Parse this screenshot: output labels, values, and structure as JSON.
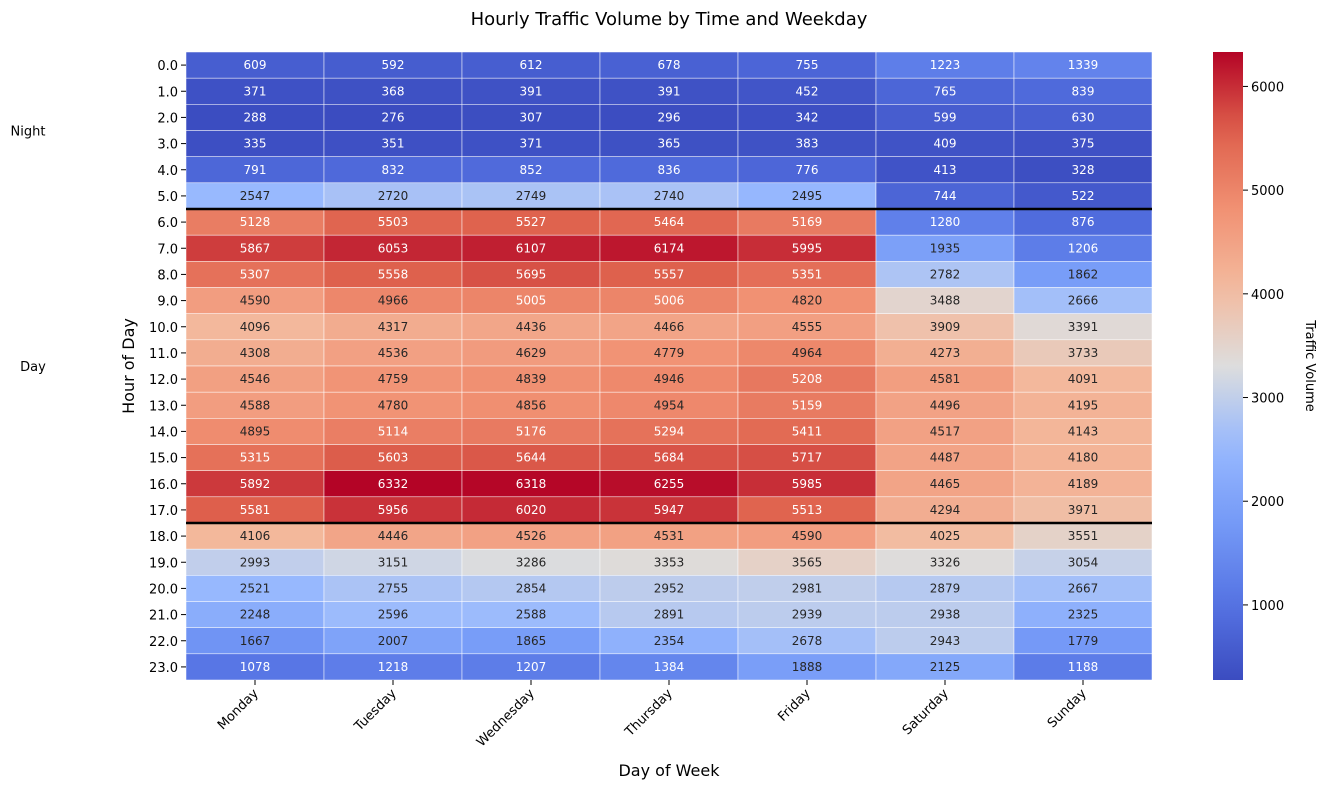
{
  "chart_data": {
    "type": "heatmap",
    "title": "Hourly Traffic Volume by Time and Weekday",
    "xlabel": "Day of Week",
    "ylabel": "Hour of Day",
    "colorbar_label": "Traffic Volume",
    "colormap": "coolwarm",
    "color_range": [
      276,
      6332
    ],
    "colorbar_ticks": [
      1000,
      2000,
      3000,
      4000,
      5000,
      6000
    ],
    "x_categories": [
      "Monday",
      "Tuesday",
      "Wednesday",
      "Thursday",
      "Friday",
      "Saturday",
      "Sunday"
    ],
    "y_categories": [
      "0.0",
      "1.0",
      "2.0",
      "3.0",
      "4.0",
      "5.0",
      "6.0",
      "7.0",
      "8.0",
      "9.0",
      "10.0",
      "11.0",
      "12.0",
      "13.0",
      "14.0",
      "15.0",
      "16.0",
      "17.0",
      "18.0",
      "19.0",
      "20.0",
      "21.0",
      "22.0",
      "23.0"
    ],
    "values": [
      [
        609,
        592,
        612,
        678,
        755,
        1223,
        1339
      ],
      [
        371,
        368,
        391,
        391,
        452,
        765,
        839
      ],
      [
        288,
        276,
        307,
        296,
        342,
        599,
        630
      ],
      [
        335,
        351,
        371,
        365,
        383,
        409,
        375
      ],
      [
        791,
        832,
        852,
        836,
        776,
        413,
        328
      ],
      [
        2547,
        2720,
        2749,
        2740,
        2495,
        744,
        522
      ],
      [
        5128,
        5503,
        5527,
        5464,
        5169,
        1280,
        876
      ],
      [
        5867,
        6053,
        6107,
        6174,
        5995,
        1935,
        1206
      ],
      [
        5307,
        5558,
        5695,
        5557,
        5351,
        2782,
        1862
      ],
      [
        4590,
        4966,
        5005,
        5006,
        4820,
        3488,
        2666
      ],
      [
        4096,
        4317,
        4436,
        4466,
        4555,
        3909,
        3391
      ],
      [
        4308,
        4536,
        4629,
        4779,
        4964,
        4273,
        3733
      ],
      [
        4546,
        4759,
        4839,
        4946,
        5208,
        4581,
        4091
      ],
      [
        4588,
        4780,
        4856,
        4954,
        5159,
        4496,
        4195
      ],
      [
        4895,
        5114,
        5176,
        5294,
        5411,
        4517,
        4143
      ],
      [
        5315,
        5603,
        5644,
        5684,
        5717,
        4487,
        4180
      ],
      [
        5892,
        6332,
        6318,
        6255,
        5985,
        4465,
        4189
      ],
      [
        5581,
        5956,
        6020,
        5947,
        5513,
        4294,
        3971
      ],
      [
        4106,
        4446,
        4526,
        4531,
        4590,
        4025,
        3551
      ],
      [
        2993,
        3151,
        3286,
        3353,
        3565,
        3326,
        3054
      ],
      [
        2521,
        2755,
        2854,
        2952,
        2981,
        2879,
        2667
      ],
      [
        2248,
        2596,
        2588,
        2891,
        2939,
        2938,
        2325
      ],
      [
        1667,
        2007,
        1865,
        2354,
        2678,
        2943,
        1779
      ],
      [
        1078,
        1218,
        1207,
        1384,
        1888,
        2125,
        1188
      ]
    ],
    "period_labels": [
      {
        "label": "Night",
        "from_hour": 0,
        "to_hour": 5
      },
      {
        "label": "Day",
        "from_hour": 6,
        "to_hour": 17
      }
    ],
    "separator_lines_before_hours": [
      6,
      18
    ],
    "grid": false
  }
}
